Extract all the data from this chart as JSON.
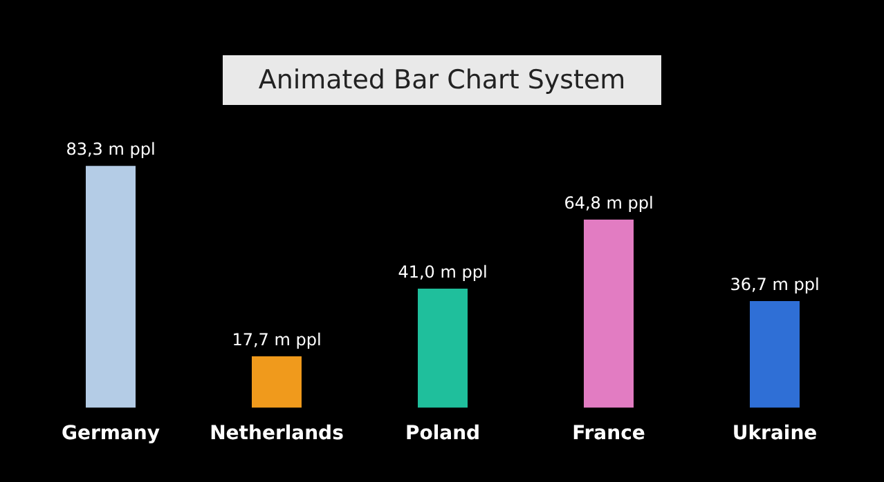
{
  "chart_data": {
    "type": "bar",
    "title": "Animated Bar Chart System",
    "categories": [
      "Germany",
      "Netherlands",
      "Poland",
      "France",
      "Ukraine"
    ],
    "values": [
      83.3,
      17.7,
      41.0,
      64.8,
      36.7
    ],
    "colors": [
      "#b4cce6",
      "#f09a1c",
      "#1fbf9c",
      "#e27cc2",
      "#2f6fd6"
    ],
    "value_labels": [
      "83,3 m ppl",
      "17,7 m ppl",
      "41,0 m ppl",
      "64,8 m ppl",
      "36,7 m ppl"
    ],
    "tick_labels": "x"
  }
}
